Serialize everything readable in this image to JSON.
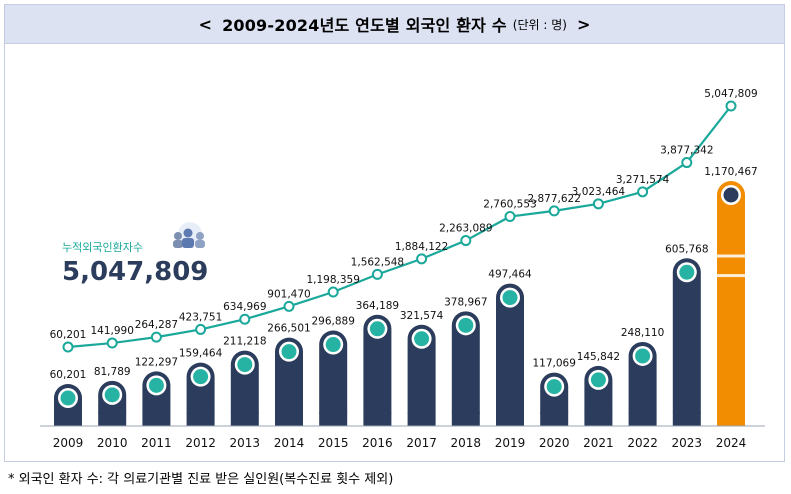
{
  "title": {
    "open_bracket": "<",
    "text": "2009-2024년도 연도별 외국인 환자 수",
    "unit": "(단위 : 명)",
    "close_bracket": ">"
  },
  "cumulative_callout": {
    "label": "누적외국인환자수",
    "value": "5,047,809"
  },
  "footnote": "* 외국인 환자 수: 각 의료기관별 진료 받은 실인원(복수진료 횟수 제외)",
  "colors": {
    "bar": "#2b3c5c",
    "highlight": "#f28c00",
    "line": "#1aa89a",
    "marker": "#27b3a4"
  },
  "chart_data": {
    "type": "bar",
    "categories": [
      "2009",
      "2010",
      "2011",
      "2012",
      "2013",
      "2014",
      "2015",
      "2016",
      "2017",
      "2018",
      "2019",
      "2020",
      "2021",
      "2022",
      "2023",
      "2024"
    ],
    "series": [
      {
        "name": "",
        "chart_type": "bar",
        "values": [
          60201,
          81789,
          122297,
          159464,
          211218,
          266501,
          296889,
          364189,
          321574,
          378967,
          497464,
          117069,
          145842,
          248110,
          605768,
          1170467
        ],
        "labels": [
          "60,201",
          "81,789",
          "122,297",
          "159,464",
          "211,218",
          "266,501",
          "296,889",
          "364,189",
          "321,574",
          "378,967",
          "497,464",
          "117,069",
          "145,842",
          "248,110",
          "605,768",
          "1,170,467"
        ]
      },
      {
        "name": "누적외국인환자수",
        "chart_type": "line",
        "values": [
          60201,
          141990,
          264287,
          423751,
          634969,
          901470,
          1198359,
          1562548,
          1884122,
          2263089,
          2760553,
          2877622,
          3023464,
          3271574,
          3877342,
          5047809
        ],
        "labels": [
          "60,201",
          "141,990",
          "264,287",
          "423,751",
          "634,969",
          "901,470",
          "1,198,359",
          "1,562,548",
          "1,884,122",
          "2,263,089",
          "2,760,553",
          "2,877,622",
          "3,023,464",
          "3,271,574",
          "3,877,342",
          "5,047,809"
        ]
      }
    ],
    "highlight_category": "2024",
    "grid": false,
    "legend": "none"
  }
}
